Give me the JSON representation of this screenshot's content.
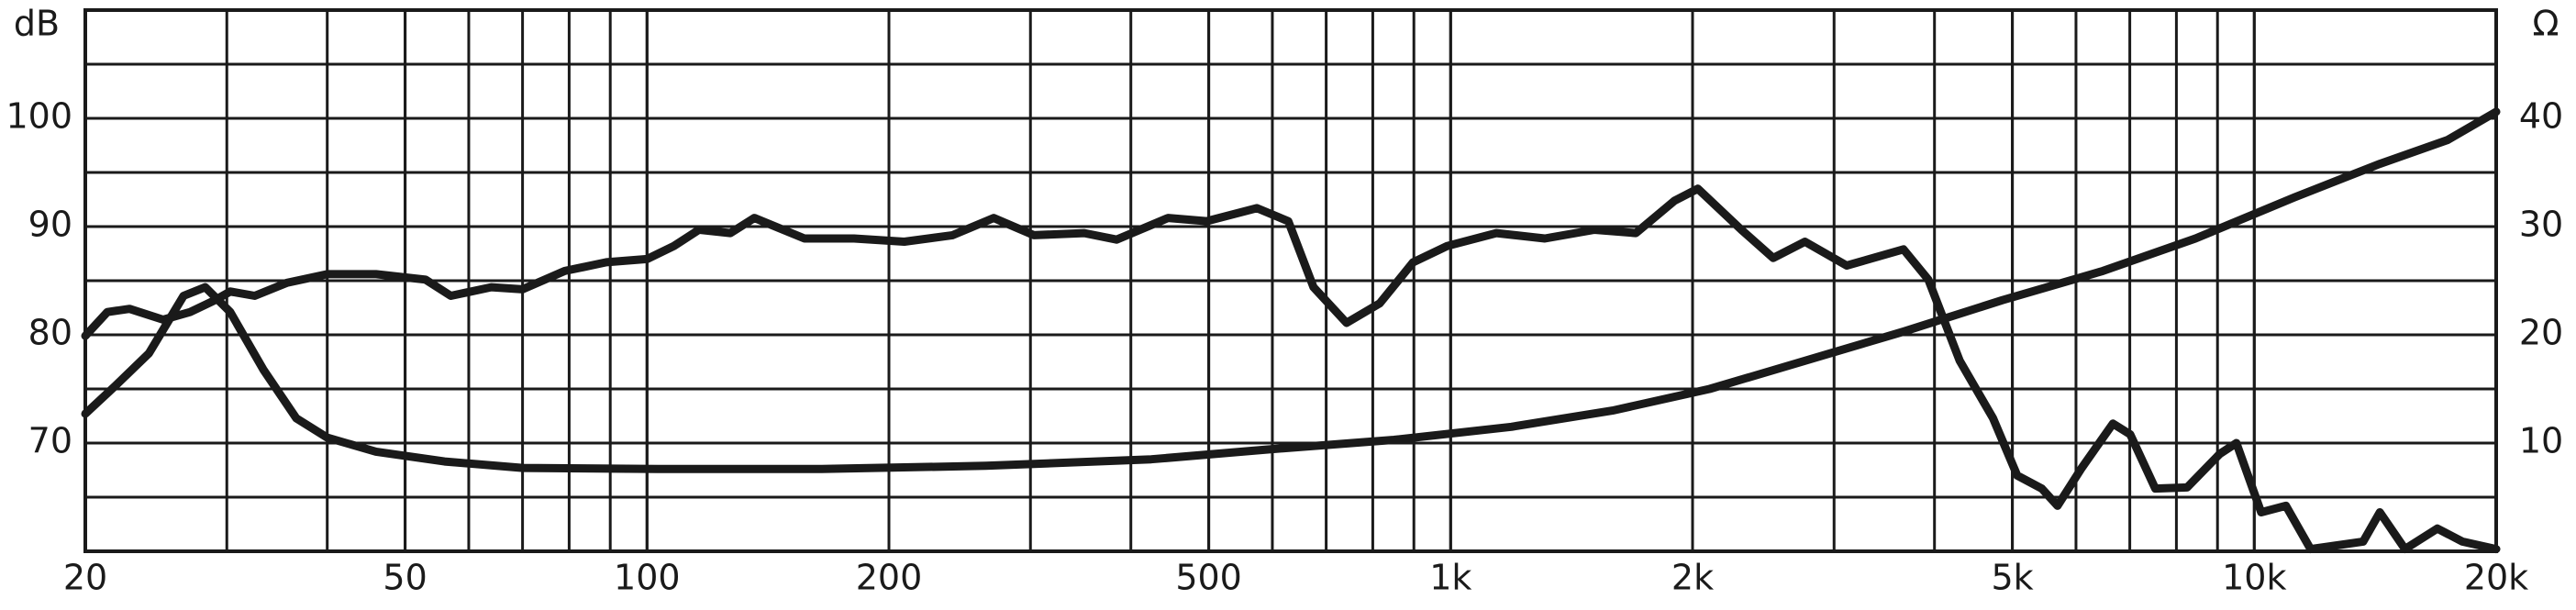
{
  "chart_data": {
    "type": "line",
    "y_label": "dB",
    "y2_label": "Ω",
    "x_scale": "log",
    "grid": true,
    "xlim": [
      20,
      20000
    ],
    "ylim": [
      60,
      110
    ],
    "y2lim": [
      0,
      50
    ],
    "xticks": [
      20,
      50,
      100,
      200,
      500,
      {
        "value": 1000,
        "label": "1k"
      },
      {
        "value": 2000,
        "label": "2k"
      },
      {
        "value": 5000,
        "label": "5k"
      },
      {
        "value": 10000,
        "label": "10k"
      },
      {
        "value": 20000,
        "label": "20k"
      }
    ],
    "yticks": [
      70,
      80,
      90,
      100
    ],
    "y2ticks": [
      10,
      20,
      30,
      40
    ],
    "series": [
      {
        "color": "#1a1a1a",
        "x": [
          20,
          21.3,
          22.7,
          25,
          27,
          29,
          30.3,
          32.5,
          35.6,
          40,
          46,
          53,
          57,
          64,
          70,
          79,
          89,
          100,
          108,
          116,
          127,
          136,
          157,
          181,
          209,
          240,
          270,
          303,
          350,
          384,
          445,
          497,
          574,
          628,
          675,
          742,
          816,
          898,
          990,
          1140,
          1310,
          1510,
          1700,
          1900,
          2030,
          2300,
          2520,
          2760,
          3110,
          3660,
          3930,
          4300,
          4730,
          5070,
          5440,
          5690,
          6100,
          6670,
          7010,
          7530,
          8250,
          9060,
          9500,
          10200,
          10950,
          11750,
          13660,
          14330,
          15400,
          16900,
          18150,
          20000
        ],
        "values": [
          79.9,
          82.1,
          82.4,
          81.4,
          82.1,
          83.2,
          84,
          83.6,
          84.8,
          85.6,
          85.6,
          85.1,
          83.6,
          84.4,
          84.2,
          85.9,
          86.7,
          87,
          88.2,
          89.7,
          89.4,
          90.8,
          88.9,
          88.9,
          88.6,
          89.2,
          90.8,
          89.2,
          89.4,
          88.8,
          90.8,
          90.5,
          91.7,
          90.5,
          84.4,
          81.1,
          82.9,
          86.7,
          88.2,
          89.4,
          88.9,
          89.7,
          89.4,
          92.4,
          93.5,
          89.7,
          87.1,
          88.6,
          86.4,
          87.9,
          85.1,
          77.6,
          72.3,
          67,
          65.8,
          64.2,
          67.7,
          71.8,
          70.8,
          65.8,
          65.9,
          69,
          70,
          63.6,
          64.2,
          60.2,
          60.9,
          63.6,
          60.2,
          62.1,
          60.9,
          60.2
        ]
      },
      {
        "color": "#1a1a1a",
        "axis": "y2",
        "x": [
          20,
          21.8,
          24,
          26.5,
          28.2,
          30.3,
          33.3,
          36.6,
          40,
          46,
          56,
          70,
          103,
          165,
          264,
          424,
          590,
          850,
          1190,
          1590,
          2100,
          2760,
          3660,
          4860,
          6480,
          8450,
          11220,
          14330,
          17400,
          20000
        ],
        "values": [
          12.7,
          15.3,
          18.3,
          23.6,
          24.4,
          22.1,
          16.8,
          12.3,
          10.5,
          9.2,
          8.3,
          7.7,
          7.6,
          7.6,
          7.9,
          8.5,
          9.4,
          10.3,
          11.5,
          13,
          15,
          17.6,
          20.3,
          23.2,
          25.9,
          28.9,
          32.7,
          35.8,
          38,
          40.6
        ]
      }
    ]
  }
}
